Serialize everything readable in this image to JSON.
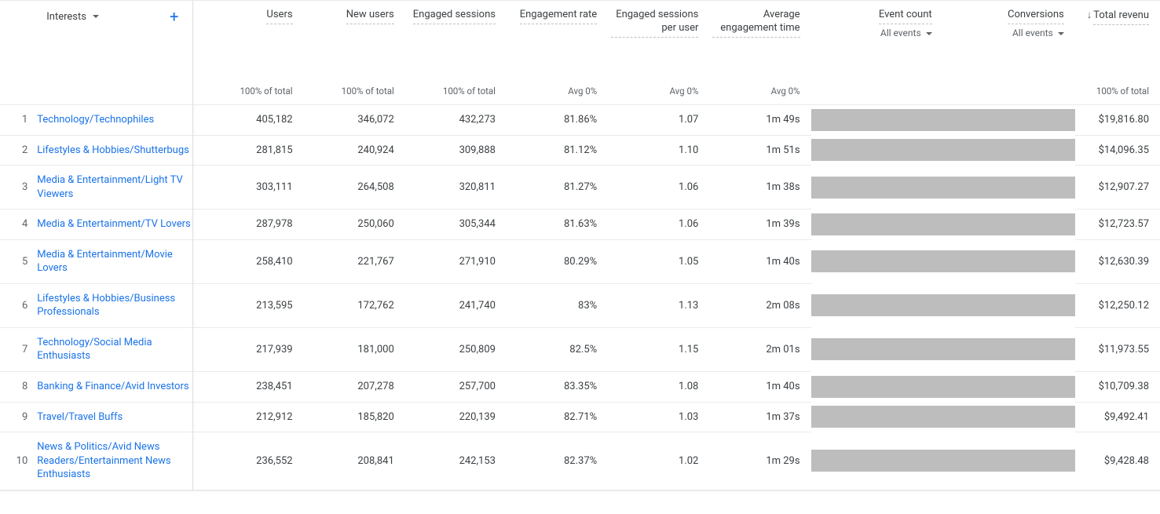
{
  "dimension": {
    "label": "Interests",
    "add_tooltip": "Add dimension"
  },
  "columns": [
    {
      "key": "users",
      "label": "Users",
      "summary": "100% of total",
      "redacted": false
    },
    {
      "key": "new_users",
      "label": "New users",
      "summary": "100% of total",
      "redacted": false
    },
    {
      "key": "eng_sessions",
      "label": "Engaged sessions",
      "summary": "100% of total",
      "redacted": false
    },
    {
      "key": "eng_rate",
      "label": "Engagement rate",
      "summary": "Avg 0%",
      "redacted": false
    },
    {
      "key": "eng_per_user",
      "label": "Engaged sessions per user",
      "summary": "Avg 0%",
      "redacted": false
    },
    {
      "key": "avg_eng_time",
      "label": "Average engagement time",
      "summary": "Avg 0%",
      "redacted": false
    },
    {
      "key": "event_count",
      "label": "Event count",
      "sub": "All events",
      "summary": "",
      "redacted": true
    },
    {
      "key": "conversions",
      "label": "Conversions",
      "sub": "All events",
      "summary": "",
      "redacted": true
    },
    {
      "key": "total_revenue",
      "label": "Total revenu",
      "summary": "100% of total",
      "redacted": false,
      "sorted": true
    }
  ],
  "rows": [
    {
      "n": 1,
      "dim": "Technology/Technophiles",
      "users": "405,182",
      "new_users": "346,072",
      "eng_sessions": "432,273",
      "eng_rate": "81.86%",
      "eng_per_user": "1.07",
      "avg_eng_time": "1m 49s",
      "total_revenue": "$19,816.80"
    },
    {
      "n": 2,
      "dim": "Lifestyles & Hobbies/Shutterbugs",
      "users": "281,815",
      "new_users": "240,924",
      "eng_sessions": "309,888",
      "eng_rate": "81.12%",
      "eng_per_user": "1.10",
      "avg_eng_time": "1m 51s",
      "total_revenue": "$14,096.35"
    },
    {
      "n": 3,
      "dim": "Media & Entertainment/Light TV Viewers",
      "users": "303,111",
      "new_users": "264,508",
      "eng_sessions": "320,811",
      "eng_rate": "81.27%",
      "eng_per_user": "1.06",
      "avg_eng_time": "1m 38s",
      "total_revenue": "$12,907.27"
    },
    {
      "n": 4,
      "dim": "Media & Entertainment/TV Lovers",
      "users": "287,978",
      "new_users": "250,060",
      "eng_sessions": "305,344",
      "eng_rate": "81.63%",
      "eng_per_user": "1.06",
      "avg_eng_time": "1m 39s",
      "total_revenue": "$12,723.57"
    },
    {
      "n": 5,
      "dim": "Media & Entertainment/Movie Lovers",
      "users": "258,410",
      "new_users": "221,767",
      "eng_sessions": "271,910",
      "eng_rate": "80.29%",
      "eng_per_user": "1.05",
      "avg_eng_time": "1m 40s",
      "total_revenue": "$12,630.39"
    },
    {
      "n": 6,
      "dim": "Lifestyles & Hobbies/Business Professionals",
      "users": "213,595",
      "new_users": "172,762",
      "eng_sessions": "241,740",
      "eng_rate": "83%",
      "eng_per_user": "1.13",
      "avg_eng_time": "2m 08s",
      "total_revenue": "$12,250.12"
    },
    {
      "n": 7,
      "dim": "Technology/Social Media Enthusiasts",
      "users": "217,939",
      "new_users": "181,000",
      "eng_sessions": "250,809",
      "eng_rate": "82.5%",
      "eng_per_user": "1.15",
      "avg_eng_time": "2m 01s",
      "total_revenue": "$11,973.55"
    },
    {
      "n": 8,
      "dim": "Banking & Finance/Avid Investors",
      "users": "238,451",
      "new_users": "207,278",
      "eng_sessions": "257,700",
      "eng_rate": "83.35%",
      "eng_per_user": "1.08",
      "avg_eng_time": "1m 40s",
      "total_revenue": "$10,709.38"
    },
    {
      "n": 9,
      "dim": "Travel/Travel Buffs",
      "users": "212,912",
      "new_users": "185,820",
      "eng_sessions": "220,139",
      "eng_rate": "82.71%",
      "eng_per_user": "1.03",
      "avg_eng_time": "1m 37s",
      "total_revenue": "$9,492.41"
    },
    {
      "n": 10,
      "dim": "News & Politics/Avid News Readers/Entertainment News Enthusiasts",
      "users": "236,552",
      "new_users": "208,841",
      "eng_sessions": "242,153",
      "eng_rate": "82.37%",
      "eng_per_user": "1.02",
      "avg_eng_time": "1m 29s",
      "total_revenue": "$9,428.48"
    }
  ],
  "style": {
    "header_text_color": "#3c4043",
    "link_color": "#1a73e8",
    "border_color": "#e8eaed",
    "redacted_color": "#bdbdbd",
    "font_size": 13
  }
}
